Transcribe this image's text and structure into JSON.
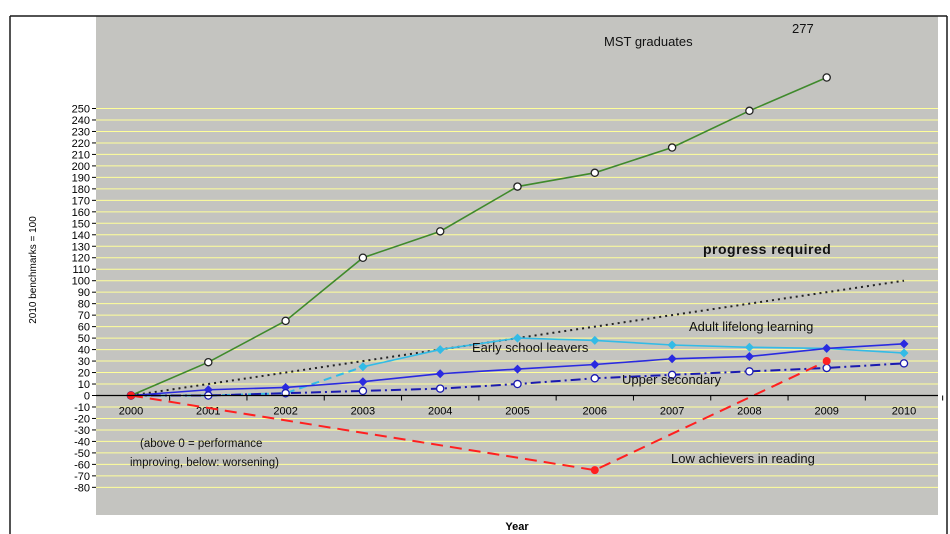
{
  "chart_data": {
    "type": "line",
    "xlabel": "Year",
    "ylabel": "2010 benchmarks = 100",
    "ylim": [
      -80,
      255
    ],
    "categories": [
      "2000",
      "2001",
      "2002",
      "2003",
      "2004",
      "2005",
      "2006",
      "2007",
      "2008",
      "2009",
      "2010"
    ],
    "yticks": [
      250,
      240,
      230,
      220,
      210,
      200,
      190,
      180,
      170,
      160,
      150,
      140,
      130,
      120,
      110,
      100,
      90,
      80,
      70,
      60,
      50,
      40,
      30,
      20,
      10,
      0,
      -10,
      -20,
      -30,
      -40,
      -50,
      -60,
      -70,
      -80
    ],
    "grid": true,
    "legend": "none (series labelled inline)",
    "colors": {
      "plot_bg": "#c4c4c0",
      "gridline": "#ffff99",
      "frame": "#1a1a1a"
    },
    "series": [
      {
        "name": "MST graduates",
        "color": "#3f8a2c",
        "style": "solid",
        "marker": "open-circle",
        "x": [
          "2000",
          "2001",
          "2002",
          "2003",
          "2004",
          "2005",
          "2006",
          "2007",
          "2008",
          "2009"
        ],
        "values": [
          0,
          29,
          65,
          120,
          143,
          182,
          194,
          216,
          248,
          277
        ]
      },
      {
        "name": "progress required",
        "color": "#222222",
        "style": "dotted",
        "marker": "none",
        "x": [
          "2000",
          "2010"
        ],
        "values": [
          0,
          100
        ]
      },
      {
        "name": "Adult lifelong learning",
        "color": "#33bbe6",
        "style": "solid (dashed 2000–2003)",
        "marker": "filled-diamond",
        "x": [
          "2000",
          "2001",
          "2002",
          "2003",
          "2004",
          "2005",
          "2006",
          "2007",
          "2008",
          "2009",
          "2010"
        ],
        "values": [
          0,
          0,
          2,
          25,
          40,
          50,
          48,
          44,
          42,
          41,
          37
        ]
      },
      {
        "name": "Early school leavers",
        "color": "#2a2ae0",
        "style": "solid",
        "marker": "filled-diamond",
        "x": [
          "2000",
          "2001",
          "2002",
          "2003",
          "2004",
          "2005",
          "2006",
          "2007",
          "2008",
          "2009",
          "2010"
        ],
        "values": [
          0,
          5,
          7,
          12,
          19,
          23,
          27,
          32,
          34,
          41,
          45
        ]
      },
      {
        "name": "Upper secondary",
        "color": "#1a1ab0",
        "style": "dash-dot",
        "marker": "open-circle",
        "x": [
          "2000",
          "2001",
          "2002",
          "2003",
          "2004",
          "2005",
          "2006",
          "2007",
          "2008",
          "2009",
          "2010"
        ],
        "values": [
          0,
          0,
          2,
          4,
          6,
          10,
          15,
          18,
          21,
          24,
          28
        ]
      },
      {
        "name": "Low achievers in reading",
        "color": "#ff2020",
        "style": "dashed",
        "marker": "filled-circle",
        "x": [
          "2000",
          "2006",
          "2009"
        ],
        "values": [
          0,
          -65,
          30
        ]
      }
    ],
    "annotations": {
      "mst_end_value": "277",
      "note_line1": "(above 0 = performance",
      "note_line2": "improving, below: worsening)"
    }
  }
}
